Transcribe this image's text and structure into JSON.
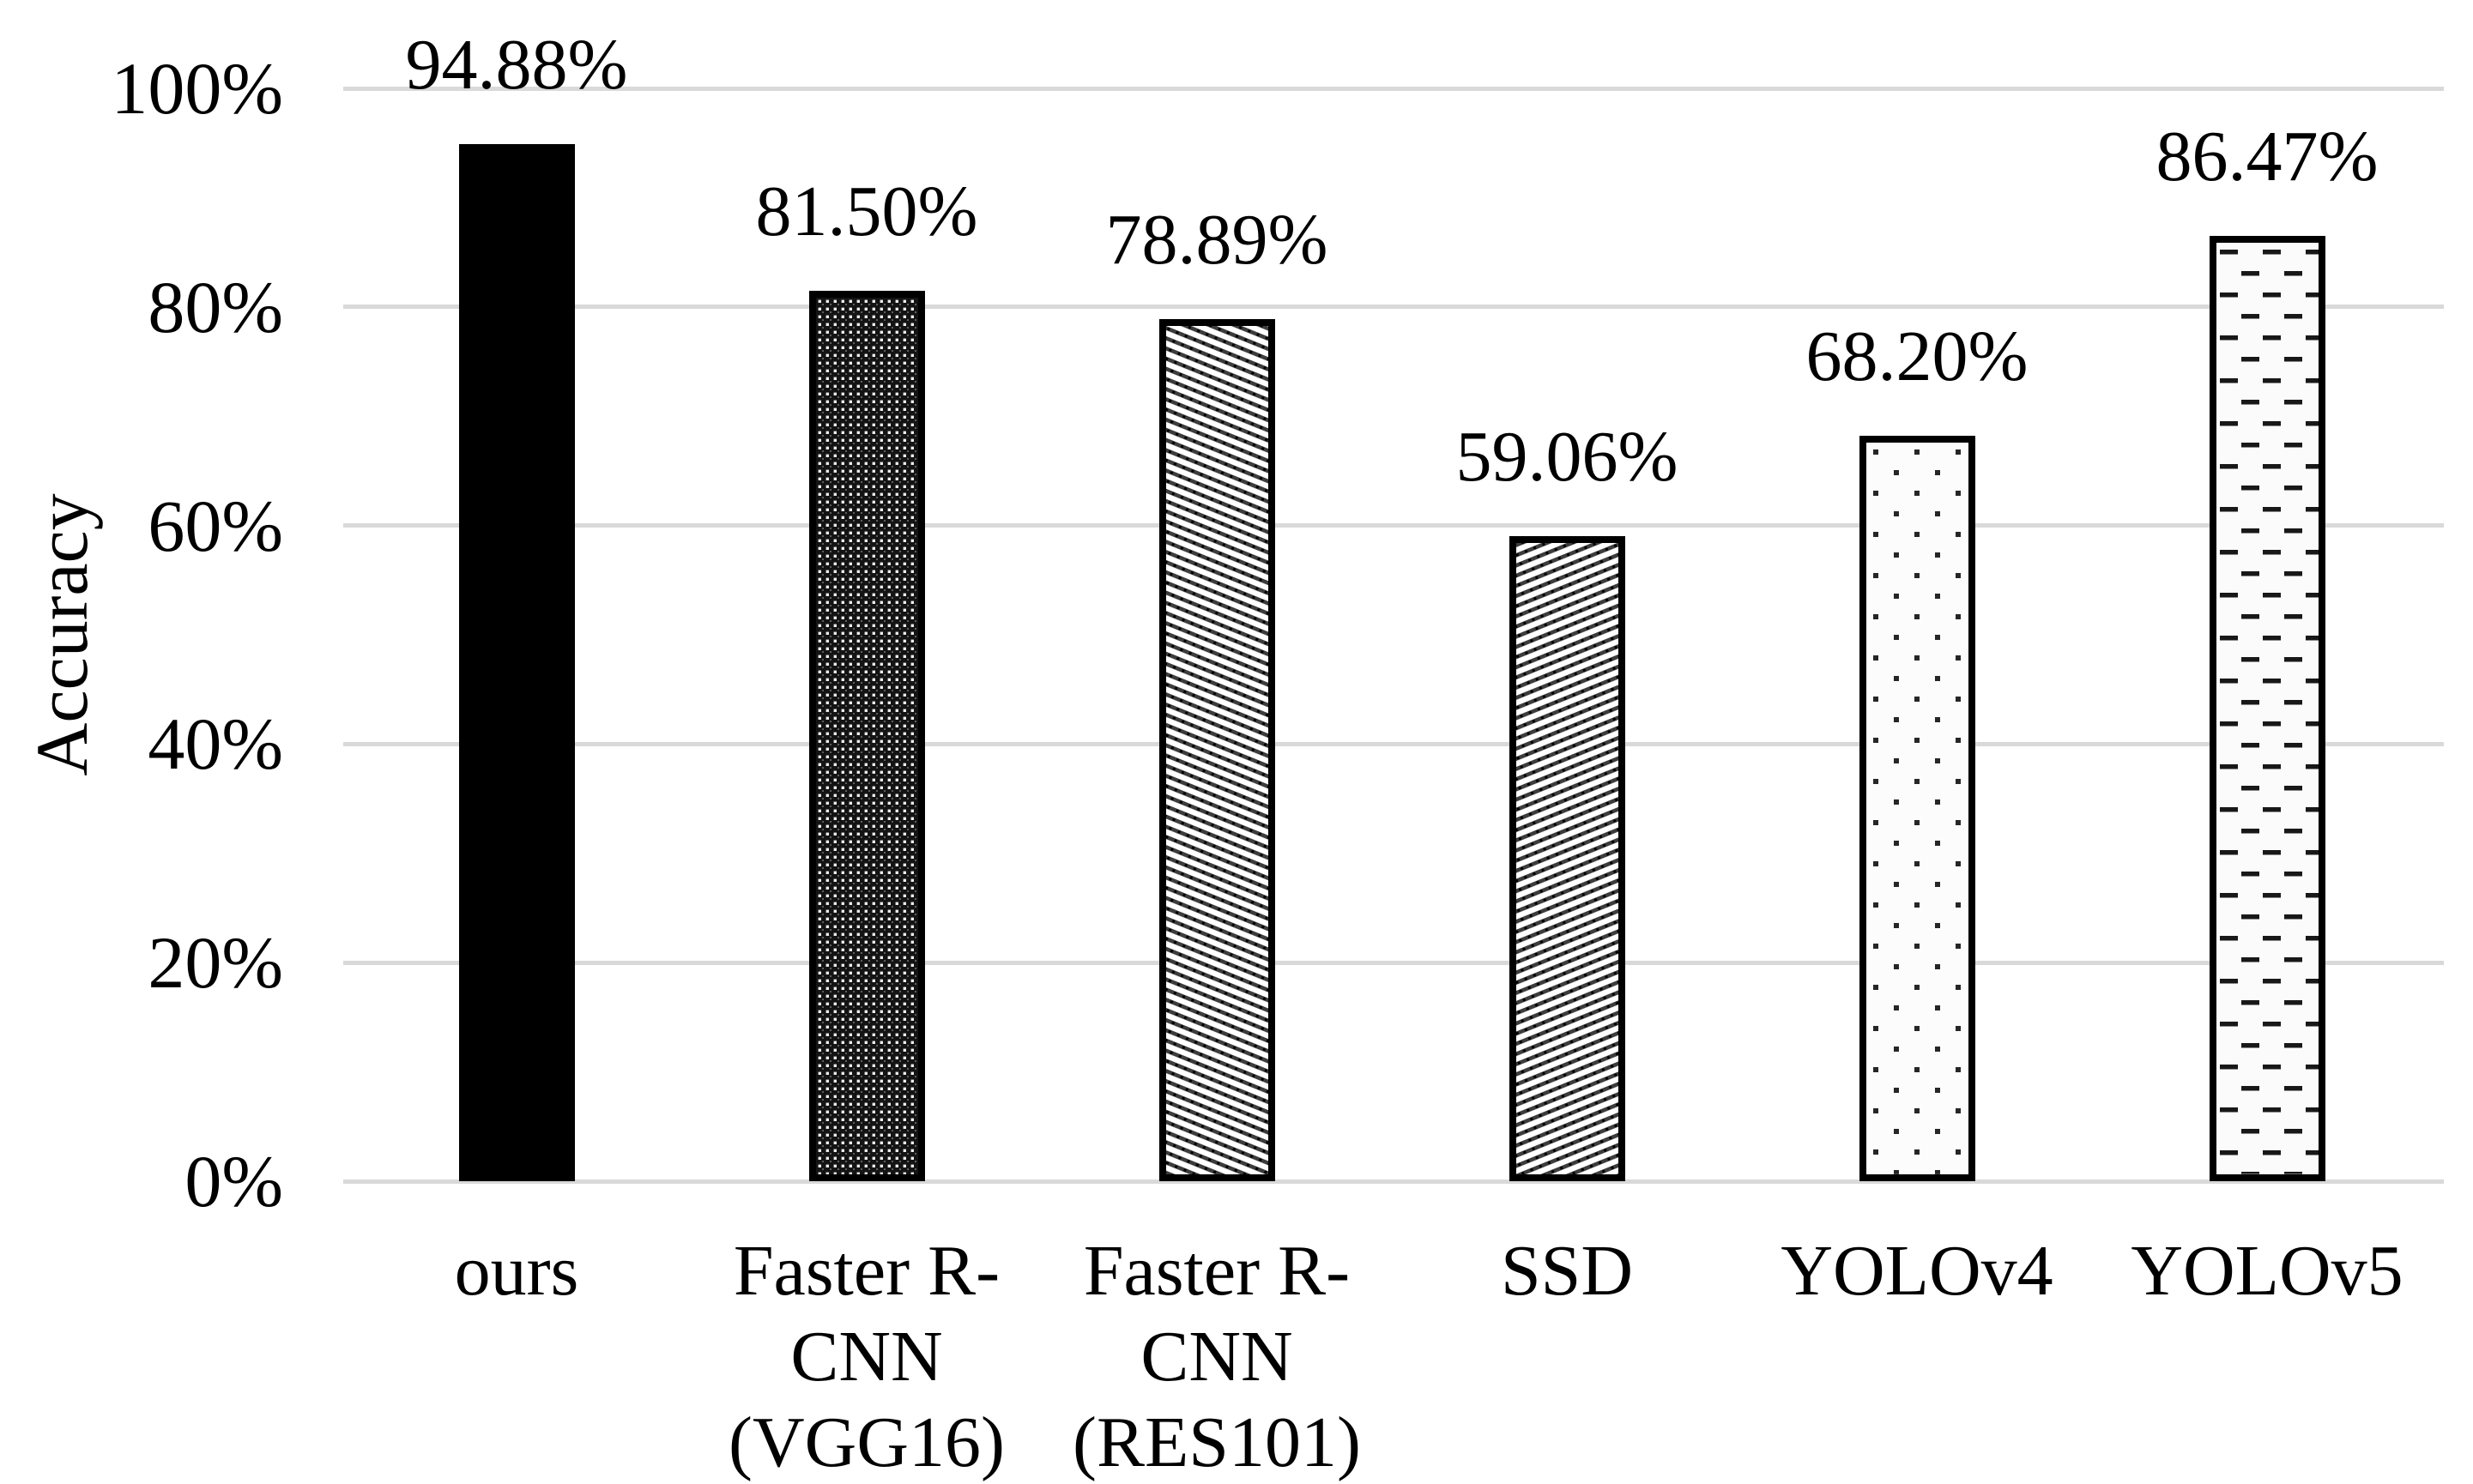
{
  "chart_data": {
    "type": "bar",
    "title": "",
    "ylabel": "Accuracy",
    "xlabel": "",
    "ylim": [
      0,
      100
    ],
    "grid": "horizontal",
    "legend_position": "none",
    "yticks": [
      {
        "label": "0%",
        "value": 0
      },
      {
        "label": "20%",
        "value": 20
      },
      {
        "label": "40%",
        "value": 40
      },
      {
        "label": "60%",
        "value": 60
      },
      {
        "label": "80%",
        "value": 80
      },
      {
        "label": "100%",
        "value": 100
      }
    ],
    "categories": [
      "ours",
      "Faster R-CNN (VGG16)",
      "Faster R-CNN (RES101)",
      "SSD",
      "YOLOv4",
      "YOLOv5"
    ],
    "category_lines": [
      [
        "ours"
      ],
      [
        "Faster R-",
        "CNN",
        "(VGG16)"
      ],
      [
        "Faster R-",
        "CNN",
        "(RES101)"
      ],
      [
        "SSD"
      ],
      [
        "YOLOv4"
      ],
      [
        "YOLOv5"
      ]
    ],
    "values": [
      94.88,
      81.5,
      78.89,
      59.06,
      68.2,
      86.47
    ],
    "data_labels": [
      "94.88%",
      "81.50%",
      "78.89%",
      "59.06%",
      "68.20%",
      "86.47%"
    ],
    "bar_patterns": [
      "solid-black",
      "dense-weave",
      "diagonal-down-stripes",
      "diagonal-up-stripes",
      "sparse-dots",
      "horizontal-dashes"
    ],
    "colors": {
      "bar_fill_dark": "#000000",
      "bar_outline": "#000000",
      "gridline": "#d9d9d9",
      "text": "#000000",
      "background": "#ffffff"
    }
  }
}
